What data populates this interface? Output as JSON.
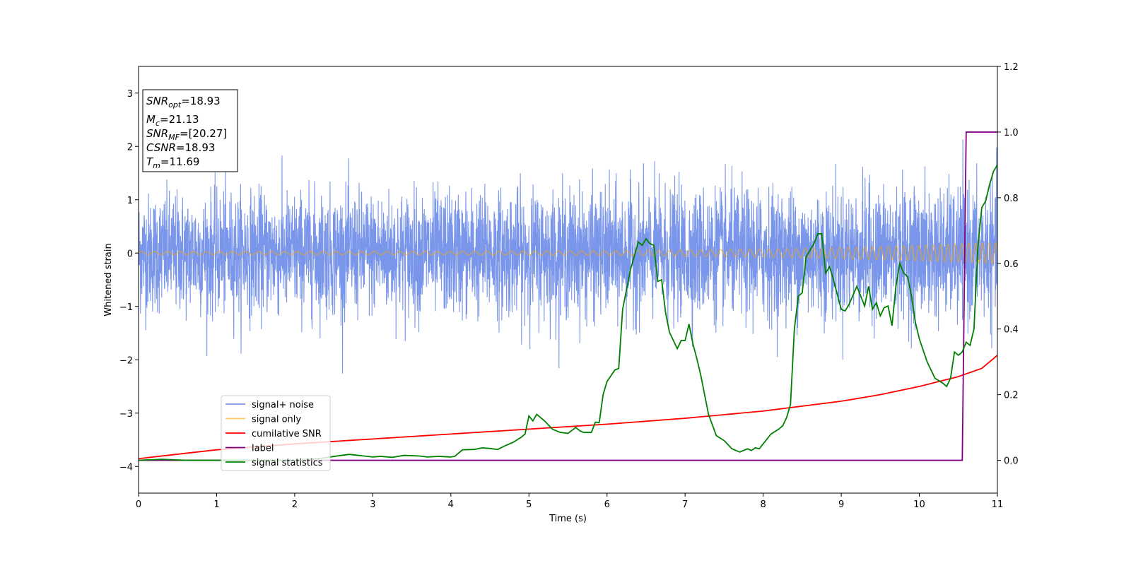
{
  "chart_data": {
    "type": "line",
    "xlabel": "Time (s)",
    "ylabel": "Whitened strain",
    "title": "",
    "xlim": [
      0,
      11
    ],
    "ylim": [
      -4.5,
      3.5
    ],
    "y2lim": [
      -0.1,
      1.2
    ],
    "xticks": [
      "0",
      "1",
      "2",
      "3",
      "4",
      "5",
      "6",
      "7",
      "8",
      "9",
      "10",
      "11"
    ],
    "yticks": [
      "−4",
      "−3",
      "−2",
      "−1",
      "0",
      "1",
      "2",
      "3"
    ],
    "y2ticks": [
      "0.0",
      "0.2",
      "0.4",
      "0.6",
      "0.8",
      "1.0",
      "1.2"
    ],
    "grid": false,
    "legend_position": "lower-left",
    "annotation": {
      "lines": [
        {
          "base": "SNR",
          "sub": "opt",
          "rest": "=18.93"
        },
        {
          "base": "M",
          "sub": "c",
          "rest": "=21.13"
        },
        {
          "base": "SNR",
          "sub": "MF",
          "rest": "=[20.27]"
        },
        {
          "base": "CSNR",
          "sub": "",
          "rest": "=18.93"
        },
        {
          "base": "T",
          "sub": "m",
          "rest": "=11.69"
        }
      ]
    },
    "series": [
      {
        "name": "signal+ noise",
        "color": "#4169E1",
        "axis": "left",
        "kind": "noise",
        "amplitude_envelope": {
          "t": [
            0,
            11
          ],
          "sigma": [
            0.55,
            0.6
          ]
        },
        "range": [
          -2.4,
          2.4
        ]
      },
      {
        "name": "signal only",
        "color": "#FFA500",
        "axis": "left",
        "kind": "chirp",
        "amp_start": 0.03,
        "amp_end": 0.2,
        "freq_start": 6.0,
        "freq_end": 12.0
      },
      {
        "name": "cumilative SNR",
        "color": "#FF0000",
        "axis": "right",
        "x": [
          0,
          1,
          2,
          3,
          4,
          5,
          6,
          7,
          8,
          9,
          9.5,
          10,
          10.5,
          10.8,
          11
        ],
        "values": [
          0.005,
          0.032,
          0.05,
          0.065,
          0.08,
          0.095,
          0.11,
          0.128,
          0.15,
          0.18,
          0.2,
          0.225,
          0.255,
          0.28,
          0.32
        ]
      },
      {
        "name": "label",
        "color": "#800080",
        "axis": "right",
        "x": [
          0,
          10.55,
          10.6,
          11
        ],
        "values": [
          0.0,
          0.0,
          1.0,
          1.0
        ]
      },
      {
        "name": "signal statistics",
        "color": "#008000",
        "axis": "right",
        "x": [
          0,
          0.3,
          0.6,
          1,
          1.5,
          2,
          2.3,
          2.6,
          2.7,
          2.85,
          3.0,
          3.1,
          3.25,
          3.4,
          3.6,
          3.7,
          3.85,
          4.0,
          4.05,
          4.15,
          4.3,
          4.4,
          4.5,
          4.6,
          4.7,
          4.8,
          4.9,
          4.95,
          5.0,
          5.05,
          5.1,
          5.2,
          5.3,
          5.4,
          5.5,
          5.6,
          5.65,
          5.7,
          5.8,
          5.85,
          5.9,
          5.95,
          6.0,
          6.1,
          6.15,
          6.2,
          6.3,
          6.4,
          6.45,
          6.5,
          6.55,
          6.6,
          6.65,
          6.7,
          6.75,
          6.8,
          6.9,
          6.95,
          7.0,
          7.05,
          7.1,
          7.15,
          7.2,
          7.3,
          7.4,
          7.5,
          7.6,
          7.7,
          7.8,
          7.85,
          7.9,
          7.95,
          8.0,
          8.1,
          8.2,
          8.25,
          8.3,
          8.35,
          8.4,
          8.45,
          8.5,
          8.55,
          8.6,
          8.65,
          8.7,
          8.75,
          8.8,
          8.85,
          8.9,
          9.0,
          9.05,
          9.1,
          9.2,
          9.25,
          9.3,
          9.35,
          9.4,
          9.45,
          9.5,
          9.55,
          9.6,
          9.65,
          9.7,
          9.75,
          9.8,
          9.85,
          9.9,
          9.95,
          10.0,
          10.1,
          10.2,
          10.3,
          10.35,
          10.4,
          10.45,
          10.5,
          10.55,
          10.6,
          10.65,
          10.7,
          10.75,
          10.8,
          10.85,
          10.9,
          10.95,
          11.0
        ],
        "values": [
          0.0,
          0.003,
          0.0,
          0.0,
          0.0,
          0.0,
          0.005,
          0.015,
          0.018,
          0.014,
          0.01,
          0.012,
          0.009,
          0.015,
          0.013,
          0.01,
          0.012,
          0.01,
          0.012,
          0.032,
          0.033,
          0.038,
          0.036,
          0.033,
          0.045,
          0.055,
          0.07,
          0.08,
          0.135,
          0.12,
          0.14,
          0.12,
          0.095,
          0.085,
          0.082,
          0.1,
          0.09,
          0.085,
          0.085,
          0.116,
          0.115,
          0.2,
          0.24,
          0.275,
          0.28,
          0.46,
          0.58,
          0.665,
          0.655,
          0.675,
          0.66,
          0.655,
          0.545,
          0.55,
          0.45,
          0.39,
          0.34,
          0.365,
          0.365,
          0.415,
          0.355,
          0.31,
          0.26,
          0.14,
          0.075,
          0.06,
          0.035,
          0.025,
          0.035,
          0.03,
          0.038,
          0.035,
          0.05,
          0.08,
          0.095,
          0.105,
          0.13,
          0.17,
          0.4,
          0.5,
          0.51,
          0.62,
          0.64,
          0.66,
          0.69,
          0.69,
          0.57,
          0.59,
          0.55,
          0.46,
          0.455,
          0.475,
          0.53,
          0.5,
          0.47,
          0.53,
          0.46,
          0.48,
          0.44,
          0.465,
          0.47,
          0.41,
          0.53,
          0.6,
          0.57,
          0.56,
          0.5,
          0.42,
          0.37,
          0.3,
          0.25,
          0.235,
          0.225,
          0.25,
          0.33,
          0.32,
          0.33,
          0.36,
          0.35,
          0.4,
          0.65,
          0.77,
          0.79,
          0.84,
          0.88,
          0.9
        ]
      }
    ]
  }
}
